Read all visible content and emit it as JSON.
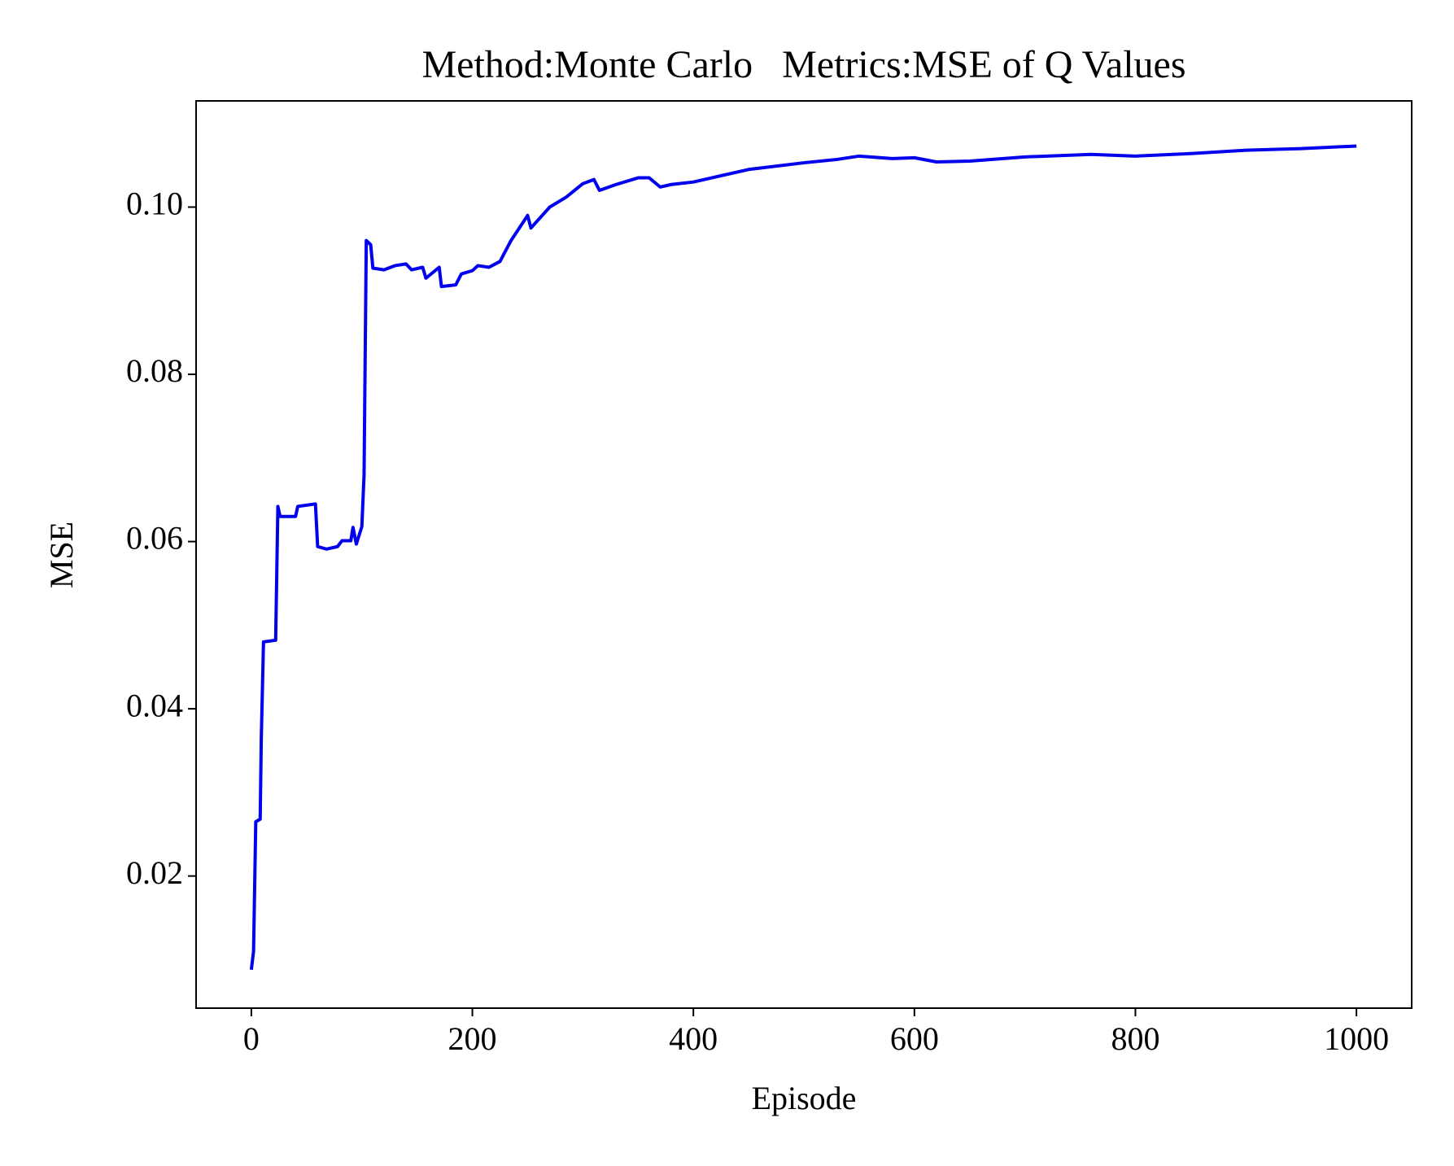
{
  "chart_data": {
    "type": "line",
    "title": "Method:Monte Carlo   Metrics:MSE of Q Values",
    "x_label": "Episode",
    "y_label": "MSE",
    "x": [
      0,
      2,
      4,
      8,
      9,
      11,
      22,
      24,
      26,
      40,
      42,
      58,
      60,
      68,
      78,
      82,
      90,
      92,
      95,
      100,
      102,
      104,
      108,
      110,
      120,
      130,
      140,
      145,
      155,
      158,
      170,
      172,
      185,
      190,
      200,
      205,
      215,
      225,
      235,
      250,
      253,
      270,
      285,
      300,
      310,
      315,
      330,
      350,
      360,
      370,
      380,
      400,
      450,
      500,
      530,
      550,
      580,
      600,
      620,
      650,
      700,
      760,
      800,
      850,
      900,
      950,
      1000
    ],
    "series": [
      {
        "name": "MSE",
        "color": "#0000ee",
        "values": [
          0.0088,
          0.011,
          0.0265,
          0.0268,
          0.0365,
          0.048,
          0.0482,
          0.0642,
          0.063,
          0.063,
          0.0642,
          0.0645,
          0.0594,
          0.0591,
          0.0594,
          0.0601,
          0.0601,
          0.0617,
          0.0597,
          0.0618,
          0.068,
          0.096,
          0.0955,
          0.0927,
          0.0925,
          0.093,
          0.0932,
          0.0925,
          0.0928,
          0.0915,
          0.0928,
          0.0905,
          0.0907,
          0.092,
          0.0924,
          0.093,
          0.0928,
          0.0935,
          0.096,
          0.099,
          0.0975,
          0.1,
          0.1012,
          0.1028,
          0.1033,
          0.102,
          0.1027,
          0.1035,
          0.1035,
          0.1024,
          0.1027,
          0.103,
          0.1045,
          0.1053,
          0.1057,
          0.1061,
          0.1058,
          0.1059,
          0.1054,
          0.1055,
          0.106,
          0.1063,
          0.1061,
          0.1064,
          0.1068,
          0.107,
          0.1073
        ]
      }
    ],
    "xlim": [
      -50,
      1050
    ],
    "ylim": [
      0.0042,
      0.1127
    ],
    "xticks": [
      0,
      200,
      400,
      600,
      800,
      1000
    ],
    "yticks": [
      0.02,
      0.04,
      0.06,
      0.08,
      {
        "value": 0.1,
        "label": "0.10"
      }
    ],
    "grid": false
  }
}
